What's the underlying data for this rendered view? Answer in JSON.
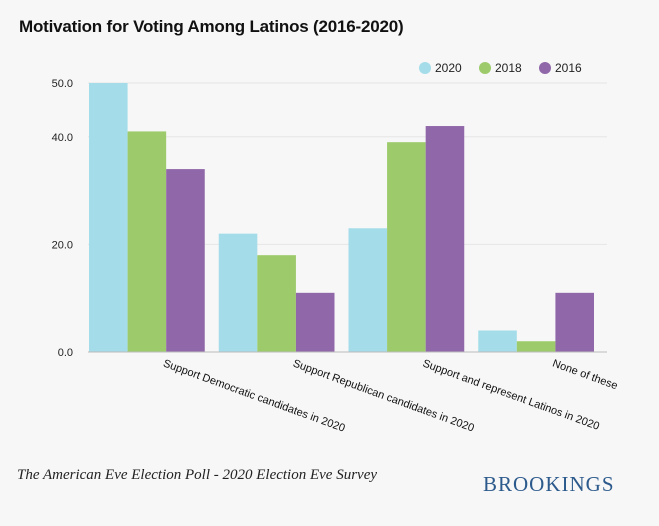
{
  "chart_data": {
    "type": "bar",
    "title": "Motivation for Voting Among Latinos (2016-2020)",
    "xlabel": "",
    "ylabel": "",
    "ylim": [
      0,
      50
    ],
    "yticks": [
      {
        "value": 0,
        "label": "0.0"
      },
      {
        "value": 20,
        "label": "20.0"
      },
      {
        "value": 40,
        "label": "40.0"
      },
      {
        "value": 50,
        "label": "50.0"
      }
    ],
    "grid": true,
    "legend_position": "top-right",
    "categories": [
      "Support Democratic candidates in 2020",
      "Support Republican candidates in 2020",
      "Support and represent Latinos in 2020",
      "None of these"
    ],
    "series": [
      {
        "name": "2020",
        "color": "#a4dde9",
        "values": [
          50,
          22,
          23,
          4
        ]
      },
      {
        "name": "2018",
        "color": "#9dcb6b",
        "values": [
          41,
          18,
          39,
          2
        ]
      },
      {
        "name": "2016",
        "color": "#9068a9",
        "values": [
          34,
          11,
          42,
          11
        ]
      }
    ]
  },
  "footer": {
    "source": "The American Eve Election Poll - 2020 Election Eve Survey",
    "logo": "BROOKINGS"
  }
}
